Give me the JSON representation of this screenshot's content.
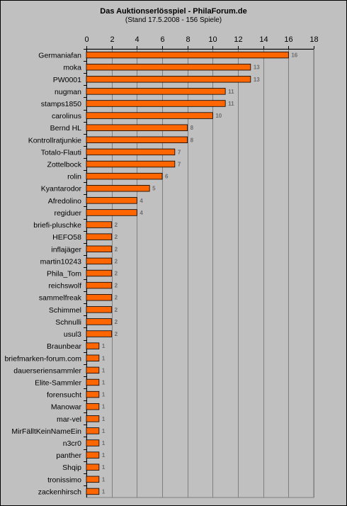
{
  "chart_data": {
    "type": "bar",
    "orientation": "horizontal",
    "title": "Das Auktionserlösspiel - PhilaForum.de",
    "subtitle": "(Stand 17.5.2008 - 156 Spiele)",
    "xlim": [
      0,
      18
    ],
    "xticks": [
      "0",
      "2",
      "4",
      "6",
      "8",
      "10",
      "12",
      "14",
      "16",
      "18"
    ],
    "grid": true,
    "bar_color": "#ff6600",
    "categories": [
      "Germaniafan",
      "moka",
      "PW0001",
      "nugman",
      "stamps1850",
      "carolinus",
      "Bernd HL",
      "Kontrollratjunkie",
      "Totalo-Flauti",
      "Zottelbock",
      "rolin",
      "Kyantarodor",
      "Afredolino",
      "regiduer",
      "briefi-pluschke",
      "HEFO58",
      "inflajäger",
      "martin10243",
      "Phila_Tom",
      "reichswolf",
      "sammelfreak",
      "Schimmel",
      "Schnulli",
      "usul3",
      "Braunbear",
      "briefmarken-forum.com",
      "dauerseriensammler",
      "Elite-Sammler",
      "forensucht",
      "Manowar",
      "mar-vel",
      "MirFälltKeinNameEin",
      "n3cr0",
      "panther",
      "Shqip",
      "tronissimo",
      "zackenhirsch"
    ],
    "values": [
      16,
      13,
      13,
      11,
      11,
      10,
      8,
      8,
      7,
      7,
      6,
      5,
      4,
      4,
      2,
      2,
      2,
      2,
      2,
      2,
      2,
      2,
      2,
      2,
      1,
      1,
      1,
      1,
      1,
      1,
      1,
      1,
      1,
      1,
      1,
      1,
      1
    ]
  }
}
